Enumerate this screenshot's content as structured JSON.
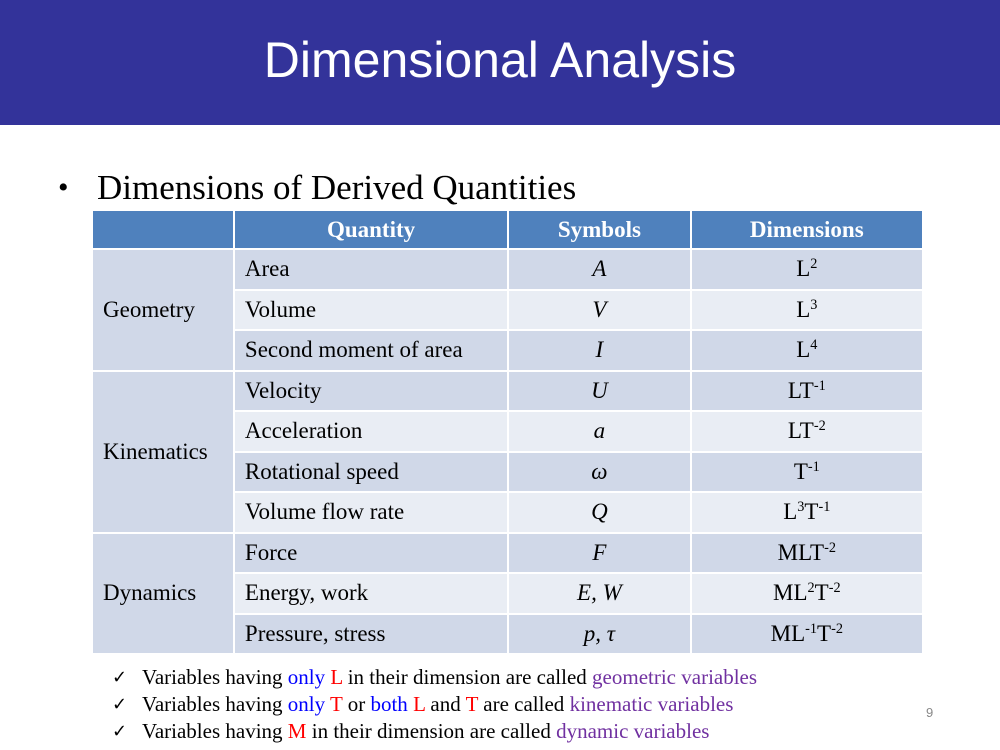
{
  "slide": {
    "title": "Dimensional Analysis",
    "bullet": "Dimensions of Derived Quantities",
    "page_number": "9"
  },
  "table": {
    "headers": [
      "",
      "Quantity",
      "Symbols",
      "Dimensions"
    ],
    "groups": [
      {
        "category": "Geometry",
        "rows": [
          {
            "quantity": "Area",
            "symbol": "A",
            "dim": [
              [
                "L",
                "2"
              ]
            ]
          },
          {
            "quantity": "Volume",
            "symbol": "V",
            "dim": [
              [
                "L",
                "3"
              ]
            ]
          },
          {
            "quantity": "Second moment of area",
            "symbol": "I",
            "dim": [
              [
                "L",
                "4"
              ]
            ]
          }
        ]
      },
      {
        "category": "Kinematics",
        "rows": [
          {
            "quantity": "Velocity",
            "symbol": "U",
            "dim": [
              [
                "LT",
                "-1"
              ]
            ]
          },
          {
            "quantity": "Acceleration",
            "symbol": "a",
            "dim": [
              [
                "LT",
                "-2"
              ]
            ]
          },
          {
            "quantity": "Rotational speed",
            "symbol": "ω",
            "dim": [
              [
                "T",
                "-1"
              ]
            ]
          },
          {
            "quantity": "Volume flow rate",
            "symbol": "Q",
            "dim": [
              [
                "L",
                "3"
              ],
              [
                "T",
                "-1"
              ]
            ]
          }
        ]
      },
      {
        "category": "Dynamics",
        "rows": [
          {
            "quantity": "Force",
            "symbol": "F",
            "dim": [
              [
                "MLT",
                "-2"
              ]
            ]
          },
          {
            "quantity": "Energy, work",
            "symbol": "E, W",
            "dim": [
              [
                "ML",
                "2"
              ],
              [
                "T",
                "-2"
              ]
            ]
          },
          {
            "quantity": "Pressure, stress",
            "symbol": "p, τ",
            "dim": [
              [
                "ML",
                "-1"
              ],
              [
                "T",
                "-2"
              ]
            ]
          }
        ]
      }
    ]
  },
  "notes": [
    [
      {
        "text": "Variables having ",
        "color": "black"
      },
      {
        "text": "only",
        "color": "blue"
      },
      {
        "text": " L",
        "color": "red"
      },
      {
        "text": " in their dimension are called ",
        "color": "black"
      },
      {
        "text": "geometric variables",
        "color": "purple"
      }
    ],
    [
      {
        "text": "Variables having ",
        "color": "black"
      },
      {
        "text": "only",
        "color": "blue"
      },
      {
        "text": " T",
        "color": "red"
      },
      {
        "text": " or ",
        "color": "black"
      },
      {
        "text": "both",
        "color": "blue"
      },
      {
        "text": " L",
        "color": "red"
      },
      {
        "text": " and ",
        "color": "black"
      },
      {
        "text": "T",
        "color": "red"
      },
      {
        "text": " are called ",
        "color": "black"
      },
      {
        "text": "kinematic variables",
        "color": "purple"
      }
    ],
    [
      {
        "text": "Variables having ",
        "color": "black"
      },
      {
        "text": "M",
        "color": "red"
      },
      {
        "text": " in their dimension are called ",
        "color": "black"
      },
      {
        "text": "dynamic variables",
        "color": "purple"
      }
    ]
  ],
  "icons": {
    "bullet": "•",
    "checkmark": "✓"
  },
  "colors": {
    "title_bar": "#33339a",
    "table_header": "#4f81bd",
    "row_dark": "#d0d8e8",
    "row_light": "#e9edf4",
    "blue": "#0000ff",
    "red": "#ff0000",
    "purple": "#7030a0"
  }
}
